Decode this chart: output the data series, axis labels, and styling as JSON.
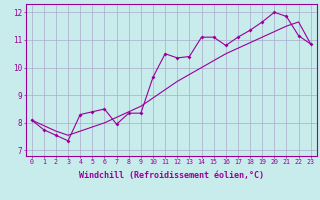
{
  "xlabel": "Windchill (Refroidissement éolien,°C)",
  "bg_color": "#c8ecec",
  "line_color": "#990099",
  "grid_color": "#aaaacc",
  "x_values": [
    0,
    1,
    2,
    3,
    4,
    5,
    6,
    7,
    8,
    9,
    10,
    11,
    12,
    13,
    14,
    15,
    16,
    17,
    18,
    19,
    20,
    21,
    22,
    23
  ],
  "y_data": [
    8.1,
    7.75,
    7.55,
    7.35,
    8.3,
    8.4,
    8.5,
    7.95,
    8.35,
    8.35,
    9.65,
    10.5,
    10.35,
    10.4,
    11.1,
    11.1,
    10.8,
    11.1,
    11.35,
    11.65,
    12.0,
    11.85,
    11.15,
    10.85
  ],
  "y_trend": [
    8.1,
    7.9,
    7.7,
    7.55,
    7.7,
    7.85,
    8.0,
    8.2,
    8.4,
    8.6,
    8.9,
    9.2,
    9.5,
    9.75,
    10.0,
    10.25,
    10.5,
    10.7,
    10.9,
    11.1,
    11.3,
    11.5,
    11.65,
    10.85
  ],
  "ylim": [
    6.8,
    12.3
  ],
  "xlim": [
    -0.5,
    23.5
  ],
  "yticks": [
    7,
    8,
    9,
    10,
    11,
    12
  ],
  "xticks": [
    0,
    1,
    2,
    3,
    4,
    5,
    6,
    7,
    8,
    9,
    10,
    11,
    12,
    13,
    14,
    15,
    16,
    17,
    18,
    19,
    20,
    21,
    22,
    23
  ],
  "tick_fontsize": 4.8,
  "xlabel_fontsize": 6.0,
  "ytick_fontsize": 5.5
}
